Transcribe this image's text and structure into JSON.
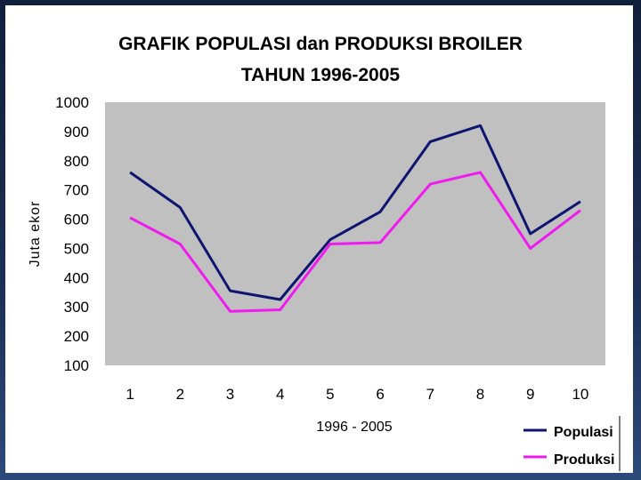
{
  "chart_data": {
    "type": "line",
    "title": "GRAFIK POPULASI dan PRODUKSI BROILER",
    "subtitle": "TAHUN 1996-2005",
    "xlabel": "1996 - 2005",
    "ylabel": "Juta ekor",
    "categories": [
      "1",
      "2",
      "3",
      "4",
      "5",
      "6",
      "7",
      "8",
      "9",
      "10"
    ],
    "yticks": [
      "100",
      "200",
      "300",
      "400",
      "500",
      "600",
      "700",
      "800",
      "900",
      "1000"
    ],
    "ylim": [
      100,
      1000
    ],
    "grid": false,
    "legend_position": "bottom-right",
    "series": [
      {
        "name": "Populasi",
        "color": "#0d1570",
        "values": [
          760,
          640,
          355,
          325,
          530,
          625,
          865,
          920,
          550,
          660
        ]
      },
      {
        "name": "Produksi",
        "color": "#f019f0",
        "values": [
          605,
          515,
          285,
          290,
          515,
          520,
          720,
          760,
          500,
          630
        ]
      }
    ],
    "plot_background": "#c0c0c0"
  }
}
